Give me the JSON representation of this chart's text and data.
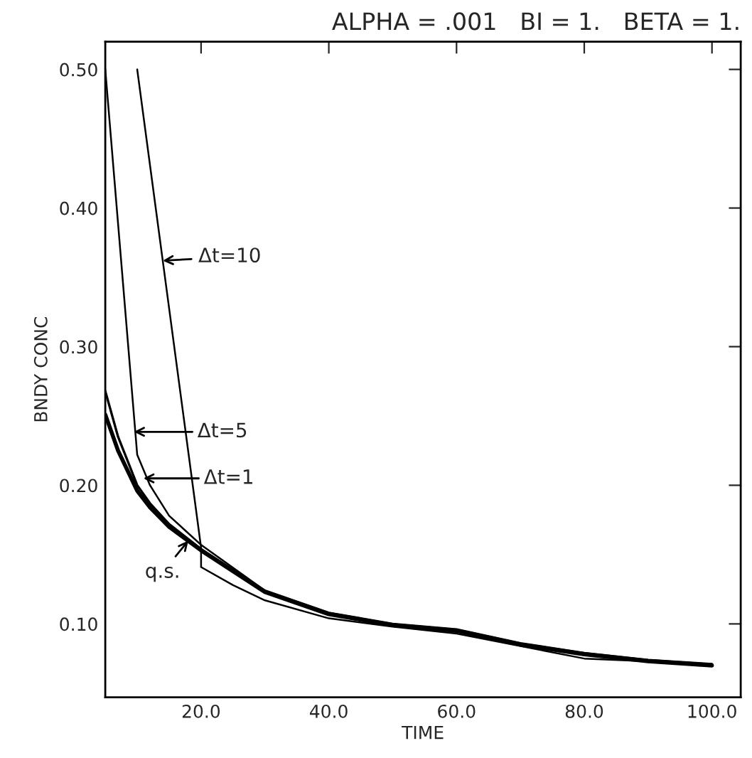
{
  "chart_data": {
    "type": "line",
    "title": "ALPHA = .001   BI = 1.   BETA = 1.",
    "xlabel": "TIME",
    "ylabel": "BNDY CONC",
    "xlim": [
      5,
      104.5
    ],
    "ylim": [
      0.047,
      0.52
    ],
    "xticks": [
      {
        "value": 20,
        "label": "20.0"
      },
      {
        "value": 40,
        "label": "40.0"
      },
      {
        "value": 60,
        "label": "60.0"
      },
      {
        "value": 80,
        "label": "80.0"
      },
      {
        "value": 100,
        "label": "100.0"
      }
    ],
    "yticks": [
      {
        "value": 0.1,
        "label": "0.10"
      },
      {
        "value": 0.2,
        "label": "0.20"
      },
      {
        "value": 0.3,
        "label": "0.30"
      },
      {
        "value": 0.4,
        "label": "0.40"
      },
      {
        "value": 0.5,
        "label": "0.50"
      }
    ],
    "grid": false,
    "legend": false,
    "marker": "none",
    "line_style": "solid",
    "series": [
      {
        "color": "#000000",
        "x": [
          10,
          20,
          20,
          25,
          30,
          40,
          50,
          60,
          70,
          80,
          90,
          100
        ],
        "values": [
          0.5,
          0.155,
          0.141,
          0.128,
          0.117,
          0.104,
          0.098,
          0.093,
          0.084,
          0.075,
          0.073,
          0.07
        ]
      },
      {
        "color": "#000000",
        "x": [
          5,
          10,
          12,
          15,
          20,
          30,
          40,
          50,
          60,
          70,
          80,
          90,
          100
        ],
        "values": [
          0.5,
          0.222,
          0.2,
          0.178,
          0.157,
          0.124,
          0.108,
          0.1,
          0.096,
          0.086,
          0.079,
          0.074,
          0.071
        ]
      },
      {
        "color": "#000000",
        "x": [
          5,
          7,
          10,
          12,
          15,
          20,
          30,
          40,
          50,
          60,
          70,
          80,
          90,
          100
        ],
        "values": [
          0.268,
          0.235,
          0.2,
          0.187,
          0.172,
          0.154,
          0.124,
          0.108,
          0.1,
          0.096,
          0.086,
          0.079,
          0.074,
          0.071
        ]
      },
      {
        "color": "#000000",
        "x": [
          5,
          7,
          10,
          12,
          15,
          20,
          30,
          40,
          50,
          60,
          70,
          80,
          90,
          100
        ],
        "values": [
          0.251,
          0.225,
          0.196,
          0.184,
          0.17,
          0.153,
          0.123,
          0.107,
          0.099,
          0.095,
          0.085,
          0.078,
          0.073,
          0.07
        ]
      }
    ],
    "annotations": [
      {
        "text": "Δt=10",
        "x": 14,
        "y": 0.362
      },
      "Δt=5",
      "Δt=1",
      {
        "text": "q.s.",
        "x": 18,
        "y": 0.16
      }
    ]
  }
}
